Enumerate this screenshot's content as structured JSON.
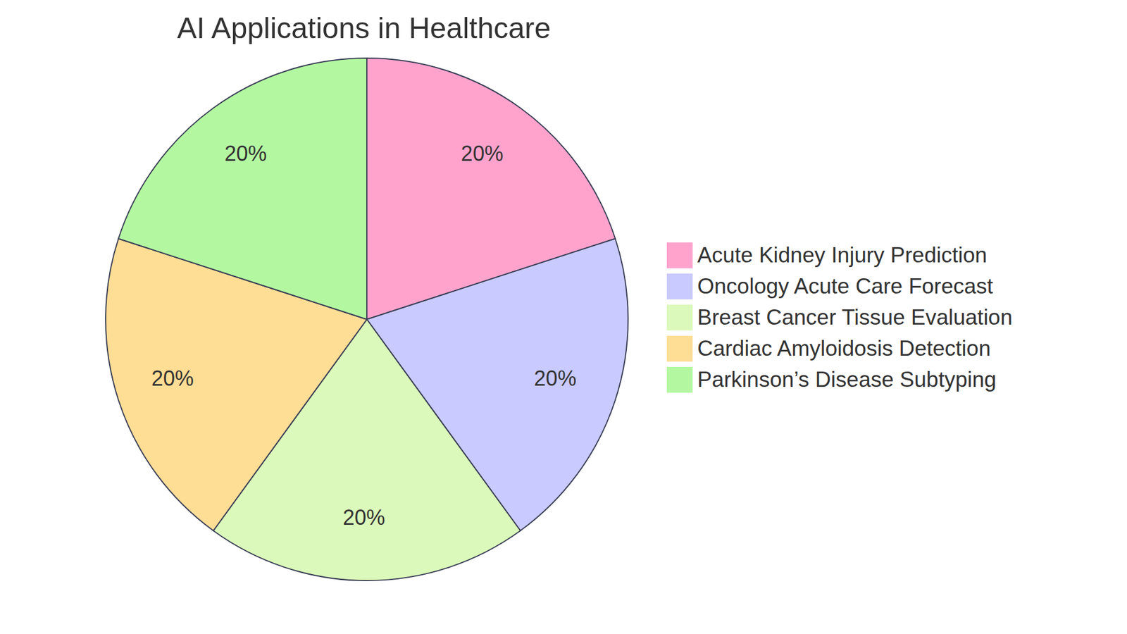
{
  "chart_data": {
    "type": "pie",
    "title": "AI Applications in Healthcare",
    "categories": [
      "Acute Kidney Injury Prediction",
      "Oncology Acute Care Forecast",
      "Breast Cancer Tissue Evaluation",
      "Cardiac Amyloidosis Detection",
      "Parkinson’s Disease Subtyping"
    ],
    "values": [
      20,
      20,
      20,
      20,
      20
    ],
    "value_labels": [
      "20%",
      "20%",
      "20%",
      "20%",
      "20%"
    ],
    "colors": [
      "#ffa3cd",
      "#c9caff",
      "#dbf9ba",
      "#fedd95",
      "#b3f8a1"
    ],
    "data_labels": true
  }
}
